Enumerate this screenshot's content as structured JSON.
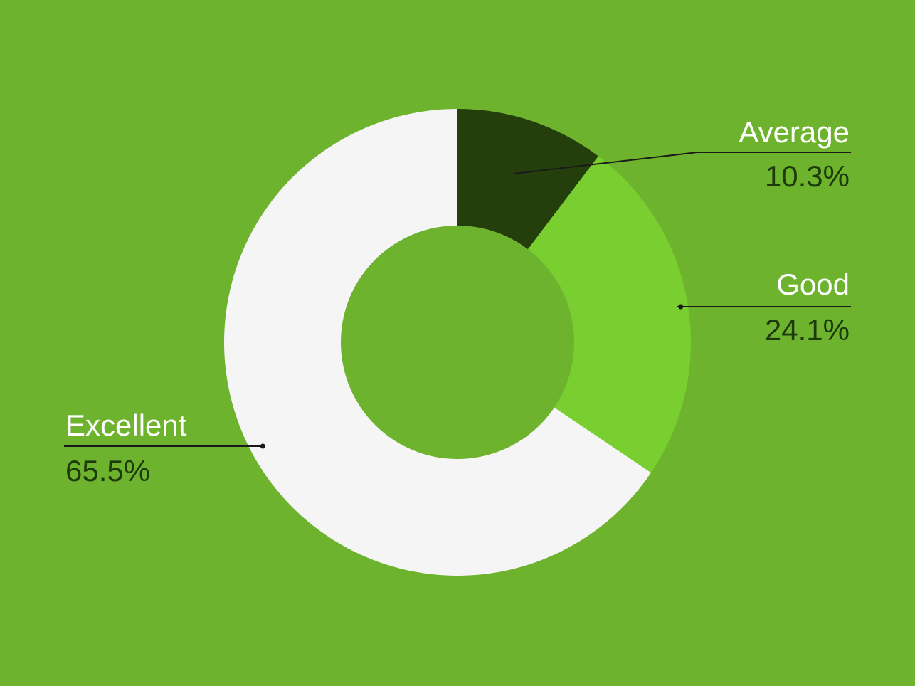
{
  "background_color": "#6db32e",
  "chart_data": {
    "type": "pie",
    "donut": true,
    "categories": [
      "Average",
      "Good",
      "Excellent"
    ],
    "values": [
      10.3,
      24.1,
      65.5
    ],
    "value_labels": [
      "10.3%",
      "24.1%",
      "65.5%"
    ],
    "colors": [
      "#243f0b",
      "#79cf2f",
      "#f5f5f5"
    ],
    "legend": "none"
  }
}
